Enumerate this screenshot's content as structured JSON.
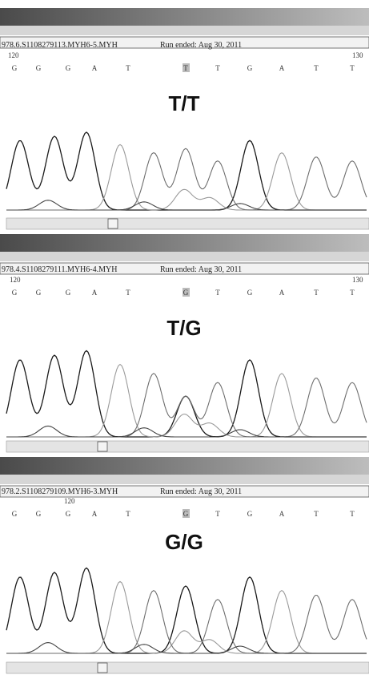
{
  "panels": [
    {
      "file": "978.6.S1108279113.MYH6-5.MYH",
      "run": "Run ended: Aug 30, 2011",
      "pos_start": "120",
      "pos_end": "130",
      "bases": [
        "G",
        "G",
        "G",
        "A",
        "T",
        "T",
        "T",
        "G",
        "A",
        "T",
        "T"
      ],
      "genotype": "T/T"
    },
    {
      "file": "978.4.S1108279111.MYH6-4.MYH",
      "run": "Run ended: Aug 30, 2011",
      "pos_start": "120",
      "pos_end": "130",
      "bases": [
        "G",
        "G",
        "G",
        "A",
        "T",
        "G",
        "T",
        "G",
        "A",
        "T",
        "T"
      ],
      "genotype": "T/G"
    },
    {
      "file": "978.2.S1108279109.MYH6-3.MYH",
      "run": "Run ended: Aug 30, 2011",
      "pos_start": "120",
      "bases": [
        "G",
        "G",
        "G",
        "A",
        "T",
        "G",
        "T",
        "G",
        "A",
        "T",
        "T"
      ],
      "genotype": "G/G"
    }
  ]
}
